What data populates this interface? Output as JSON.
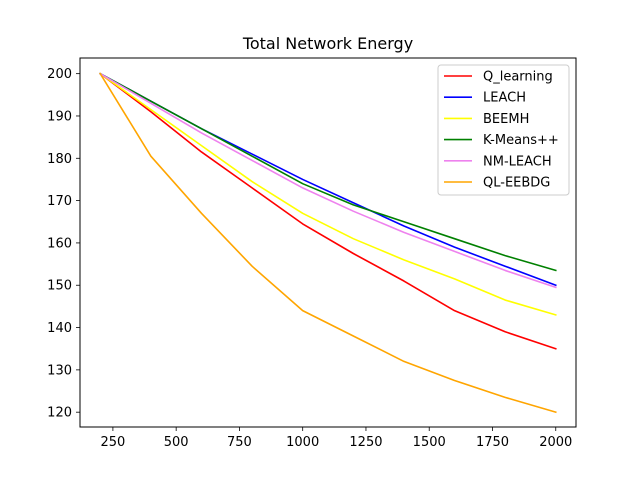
{
  "chart_data": {
    "type": "line",
    "title": "Total Network Energy",
    "xlabel": "",
    "ylabel": "",
    "xlim": [
      120,
      2080
    ],
    "ylim": [
      116.5,
      203.7
    ],
    "xticks": [
      250,
      500,
      750,
      1000,
      1250,
      1500,
      1750,
      2000
    ],
    "yticks": [
      120,
      130,
      140,
      150,
      160,
      170,
      180,
      190,
      200
    ],
    "grid": false,
    "legend_position": "top-right",
    "series": [
      {
        "name": "Q_learning",
        "color": "#ff0000",
        "x": [
          200,
          400,
          600,
          800,
          1000,
          1200,
          1400,
          1600,
          1800,
          2000
        ],
        "y": [
          200,
          191,
          181.5,
          173,
          164.5,
          157.5,
          151,
          144,
          139,
          135
        ]
      },
      {
        "name": "LEACH",
        "color": "#0000ff",
        "x": [
          200,
          400,
          600,
          800,
          1000,
          1200,
          1400,
          1600,
          1800,
          2000
        ],
        "y": [
          200,
          193.5,
          187,
          181,
          175,
          169.5,
          164,
          159,
          154.5,
          150
        ]
      },
      {
        "name": "BEEMH",
        "color": "#ffff00",
        "x": [
          200,
          400,
          600,
          800,
          1000,
          1200,
          1400,
          1600,
          1800,
          2000
        ],
        "y": [
          200,
          191.5,
          183,
          174.5,
          167,
          161,
          156,
          151.5,
          146.5,
          143
        ]
      },
      {
        "name": "K-Means++",
        "color": "#008000",
        "x": [
          200,
          400,
          600,
          800,
          1000,
          1200,
          1400,
          1600,
          1800,
          2000
        ],
        "y": [
          200,
          193.5,
          187,
          180.5,
          174,
          169,
          165,
          161,
          157,
          153.5
        ]
      },
      {
        "name": "NM-LEACH",
        "color": "#ee82ee",
        "x": [
          200,
          400,
          600,
          800,
          1000,
          1200,
          1400,
          1600,
          1800,
          2000
        ],
        "y": [
          200,
          193,
          186,
          179.5,
          173,
          167.5,
          162.5,
          158,
          153.5,
          149.5
        ]
      },
      {
        "name": "QL-EEBDG",
        "color": "#ffa500",
        "x": [
          200,
          400,
          600,
          800,
          1000,
          1200,
          1400,
          1600,
          1800,
          2000
        ],
        "y": [
          200,
          180.5,
          167,
          154.5,
          144,
          138,
          132,
          127.5,
          123.5,
          120
        ]
      }
    ]
  }
}
